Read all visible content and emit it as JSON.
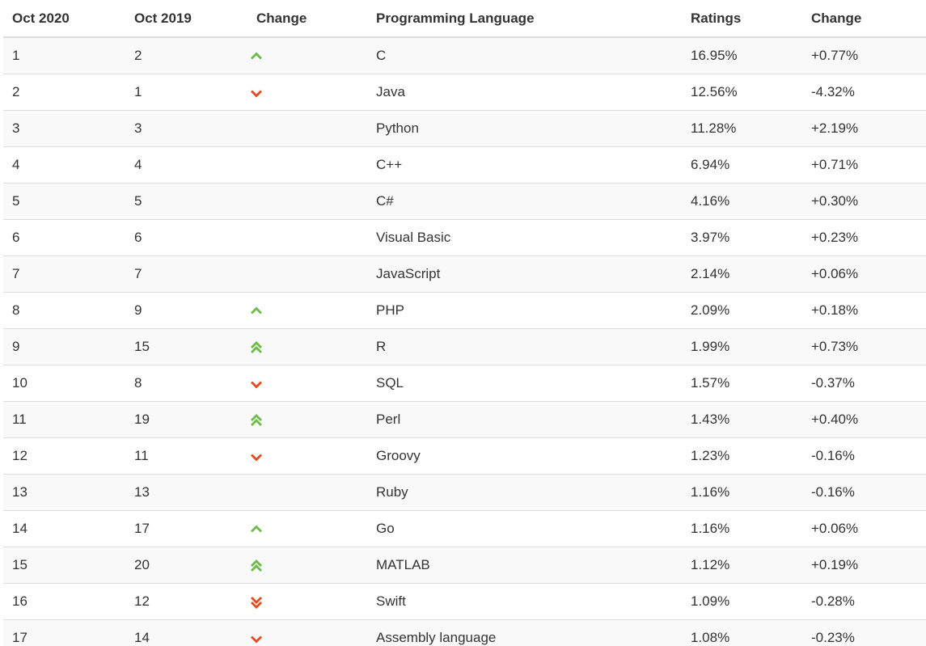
{
  "header": {
    "col_oct2020": "Oct 2020",
    "col_oct2019": "Oct 2019",
    "col_change": "Change",
    "col_language": "Programming Language",
    "col_ratings": "Ratings",
    "col_ratings_change": "Change"
  },
  "icons": {
    "up": {
      "name": "chevron-up-icon",
      "color": "#6cbd45"
    },
    "down": {
      "name": "chevron-down-icon",
      "color": "#e8491d"
    },
    "double_up": {
      "name": "double-chevron-up-icon",
      "color": "#6cbd45"
    },
    "double_down": {
      "name": "double-chevron-down-icon",
      "color": "#e8491d"
    }
  },
  "rows": [
    {
      "oct2020": "1",
      "oct2019": "2",
      "trend": "up",
      "language": "C",
      "rating": "16.95%",
      "change": "+0.77%"
    },
    {
      "oct2020": "2",
      "oct2019": "1",
      "trend": "down",
      "language": "Java",
      "rating": "12.56%",
      "change": "-4.32%"
    },
    {
      "oct2020": "3",
      "oct2019": "3",
      "trend": "none",
      "language": "Python",
      "rating": "11.28%",
      "change": "+2.19%"
    },
    {
      "oct2020": "4",
      "oct2019": "4",
      "trend": "none",
      "language": "C++",
      "rating": "6.94%",
      "change": "+0.71%"
    },
    {
      "oct2020": "5",
      "oct2019": "5",
      "trend": "none",
      "language": "C#",
      "rating": "4.16%",
      "change": "+0.30%"
    },
    {
      "oct2020": "6",
      "oct2019": "6",
      "trend": "none",
      "language": "Visual Basic",
      "rating": "3.97%",
      "change": "+0.23%"
    },
    {
      "oct2020": "7",
      "oct2019": "7",
      "trend": "none",
      "language": "JavaScript",
      "rating": "2.14%",
      "change": "+0.06%"
    },
    {
      "oct2020": "8",
      "oct2019": "9",
      "trend": "up",
      "language": "PHP",
      "rating": "2.09%",
      "change": "+0.18%"
    },
    {
      "oct2020": "9",
      "oct2019": "15",
      "trend": "double_up",
      "language": "R",
      "rating": "1.99%",
      "change": "+0.73%"
    },
    {
      "oct2020": "10",
      "oct2019": "8",
      "trend": "down",
      "language": "SQL",
      "rating": "1.57%",
      "change": "-0.37%"
    },
    {
      "oct2020": "11",
      "oct2019": "19",
      "trend": "double_up",
      "language": "Perl",
      "rating": "1.43%",
      "change": "+0.40%"
    },
    {
      "oct2020": "12",
      "oct2019": "11",
      "trend": "down",
      "language": "Groovy",
      "rating": "1.23%",
      "change": "-0.16%"
    },
    {
      "oct2020": "13",
      "oct2019": "13",
      "trend": "none",
      "language": "Ruby",
      "rating": "1.16%",
      "change": "-0.16%"
    },
    {
      "oct2020": "14",
      "oct2019": "17",
      "trend": "up",
      "language": "Go",
      "rating": "1.16%",
      "change": "+0.06%"
    },
    {
      "oct2020": "15",
      "oct2019": "20",
      "trend": "double_up",
      "language": "MATLAB",
      "rating": "1.12%",
      "change": "+0.19%"
    },
    {
      "oct2020": "16",
      "oct2019": "12",
      "trend": "double_down",
      "language": "Swift",
      "rating": "1.09%",
      "change": "-0.28%"
    },
    {
      "oct2020": "17",
      "oct2019": "14",
      "trend": "down",
      "language": "Assembly language",
      "rating": "1.08%",
      "change": "-0.23%"
    }
  ]
}
